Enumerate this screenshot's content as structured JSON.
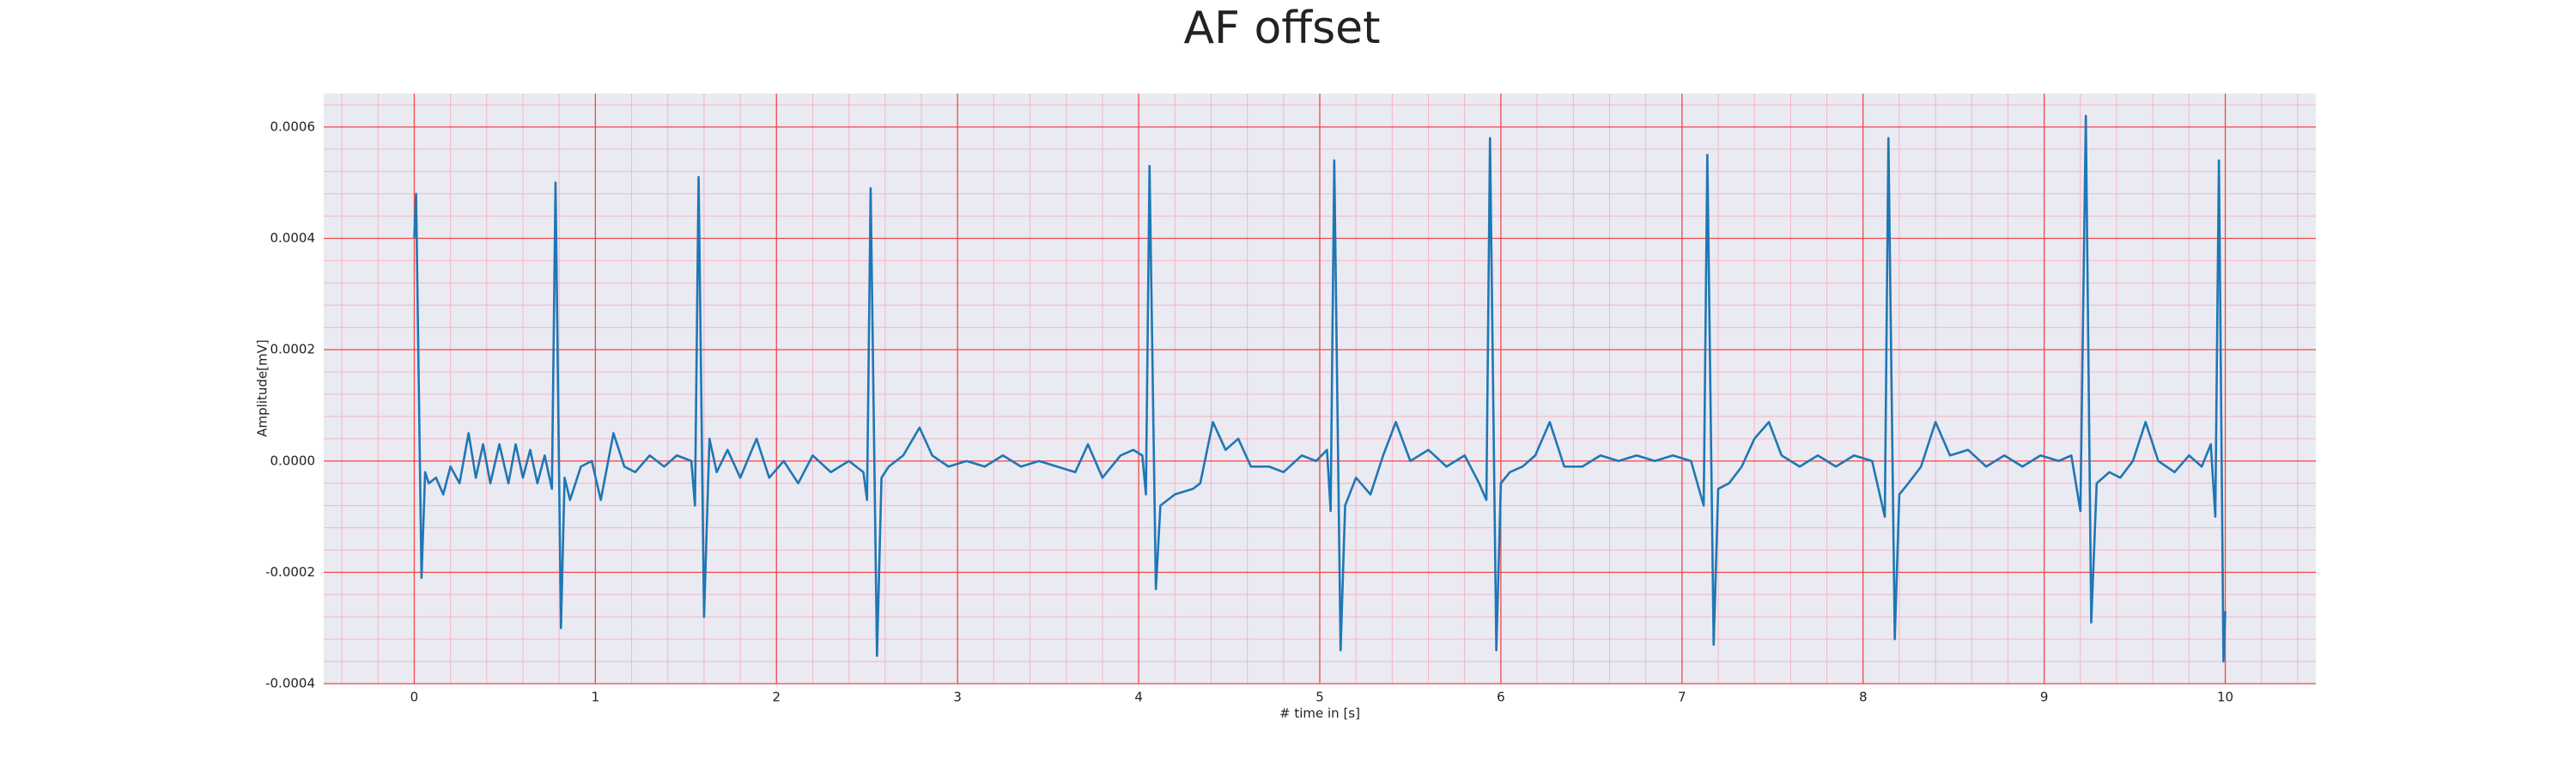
{
  "chart_data": {
    "type": "line",
    "title": "AF offset",
    "xlabel": "# time in [s]",
    "ylabel": "Amplitude[mV]",
    "x": [
      0.0,
      0.01,
      0.04,
      0.06,
      0.08,
      0.12,
      0.16,
      0.2,
      0.25,
      0.3,
      0.34,
      0.38,
      0.42,
      0.47,
      0.52,
      0.56,
      0.6,
      0.64,
      0.68,
      0.72,
      0.76,
      0.78,
      0.81,
      0.83,
      0.86,
      0.92,
      0.98,
      1.03,
      1.1,
      1.16,
      1.22,
      1.3,
      1.38,
      1.45,
      1.53,
      1.55,
      1.57,
      1.6,
      1.63,
      1.67,
      1.73,
      1.8,
      1.89,
      1.96,
      2.04,
      2.12,
      2.2,
      2.3,
      2.4,
      2.48,
      2.5,
      2.52,
      2.555,
      2.58,
      2.62,
      2.7,
      2.79,
      2.86,
      2.95,
      3.05,
      3.15,
      3.25,
      3.35,
      3.45,
      3.55,
      3.65,
      3.72,
      3.8,
      3.9,
      3.97,
      4.02,
      4.04,
      4.06,
      4.095,
      4.12,
      4.2,
      4.3,
      4.34,
      4.41,
      4.48,
      4.55,
      4.62,
      4.72,
      4.8,
      4.9,
      4.98,
      5.04,
      5.06,
      5.08,
      5.115,
      5.14,
      5.2,
      5.28,
      5.35,
      5.42,
      5.5,
      5.6,
      5.7,
      5.8,
      5.88,
      5.92,
      5.94,
      5.975,
      6.0,
      6.05,
      6.12,
      6.19,
      6.27,
      6.35,
      6.45,
      6.55,
      6.65,
      6.75,
      6.85,
      6.95,
      7.05,
      7.12,
      7.14,
      7.175,
      7.2,
      7.26,
      7.33,
      7.4,
      7.48,
      7.55,
      7.65,
      7.75,
      7.85,
      7.95,
      8.05,
      8.12,
      8.14,
      8.175,
      8.2,
      8.25,
      8.32,
      8.4,
      8.48,
      8.58,
      8.68,
      8.78,
      8.88,
      8.98,
      9.08,
      9.15,
      9.2,
      9.23,
      9.26,
      9.29,
      9.36,
      9.42,
      9.49,
      9.56,
      9.63,
      9.72,
      9.8,
      9.87,
      9.92,
      9.945,
      9.965,
      9.99,
      10.0
    ],
    "series": [
      {
        "name": "AF offset",
        "color": "#1f77b4",
        "values": [
          0.0004,
          0.00048,
          -0.00021,
          -2e-05,
          -4e-05,
          -3e-05,
          -6e-05,
          -1e-05,
          -4e-05,
          5e-05,
          -3e-05,
          3e-05,
          -4e-05,
          3e-05,
          -4e-05,
          3e-05,
          -3e-05,
          2e-05,
          -4e-05,
          1e-05,
          -5e-05,
          0.0005,
          -0.0003,
          -3e-05,
          -7e-05,
          -1e-05,
          0.0,
          -7e-05,
          5e-05,
          -1e-05,
          -2e-05,
          1e-05,
          -1e-05,
          1e-05,
          0.0,
          -8e-05,
          0.00051,
          -0.00028,
          4e-05,
          -2e-05,
          2e-05,
          -3e-05,
          4e-05,
          -3e-05,
          0.0,
          -4e-05,
          1e-05,
          -2e-05,
          0.0,
          -2e-05,
          -7e-05,
          0.00049,
          -0.00035,
          -3e-05,
          -1e-05,
          1e-05,
          6e-05,
          1e-05,
          -1e-05,
          0.0,
          -1e-05,
          1e-05,
          -1e-05,
          0.0,
          -1e-05,
          -2e-05,
          3e-05,
          -3e-05,
          1e-05,
          2e-05,
          1e-05,
          -6e-05,
          0.00053,
          -0.00023,
          -8e-05,
          -6e-05,
          -5e-05,
          -4e-05,
          7e-05,
          2e-05,
          4e-05,
          -1e-05,
          -1e-05,
          -2e-05,
          1e-05,
          0.0,
          2e-05,
          -9e-05,
          0.00054,
          -0.00034,
          -8e-05,
          -3e-05,
          -6e-05,
          1e-05,
          7e-05,
          0.0,
          2e-05,
          -1e-05,
          1e-05,
          -4e-05,
          -7e-05,
          0.00058,
          -0.00034,
          -4e-05,
          -2e-05,
          -1e-05,
          1e-05,
          7e-05,
          -1e-05,
          -1e-05,
          1e-05,
          0.0,
          1e-05,
          0.0,
          1e-05,
          0.0,
          -8e-05,
          0.00055,
          -0.00033,
          -5e-05,
          -4e-05,
          -1e-05,
          4e-05,
          7e-05,
          1e-05,
          -1e-05,
          1e-05,
          -1e-05,
          1e-05,
          0.0,
          -0.0001,
          0.00058,
          -0.00032,
          -6e-05,
          -4e-05,
          -1e-05,
          7e-05,
          1e-05,
          2e-05,
          -1e-05,
          1e-05,
          -1e-05,
          1e-05,
          0.0,
          1e-05,
          -9e-05,
          0.00062,
          -0.00029,
          -4e-05,
          -2e-05,
          -3e-05,
          0.0,
          7e-05,
          0.0,
          -2e-05,
          1e-05,
          -1e-05,
          3e-05,
          -0.0001,
          0.00054,
          -0.00036,
          -0.00027
        ]
      }
    ],
    "xlim": [
      -0.5,
      10.5
    ],
    "ylim": [
      -0.0004,
      0.00066
    ],
    "xticks": [
      0,
      1,
      2,
      3,
      4,
      5,
      6,
      7,
      8,
      9,
      10
    ],
    "yticks": [
      {
        "value": -0.0004,
        "label": "-0.0004"
      },
      {
        "value": -0.0002,
        "label": "-0.0002"
      },
      {
        "value": 0,
        "label": "0.0000"
      },
      {
        "value": 0.0002,
        "label": "0.0002"
      },
      {
        "value": 0.0004,
        "label": "0.0004"
      },
      {
        "value": 0.0006,
        "label": "0.0006"
      }
    ],
    "grid": true,
    "minor_grid": true
  }
}
